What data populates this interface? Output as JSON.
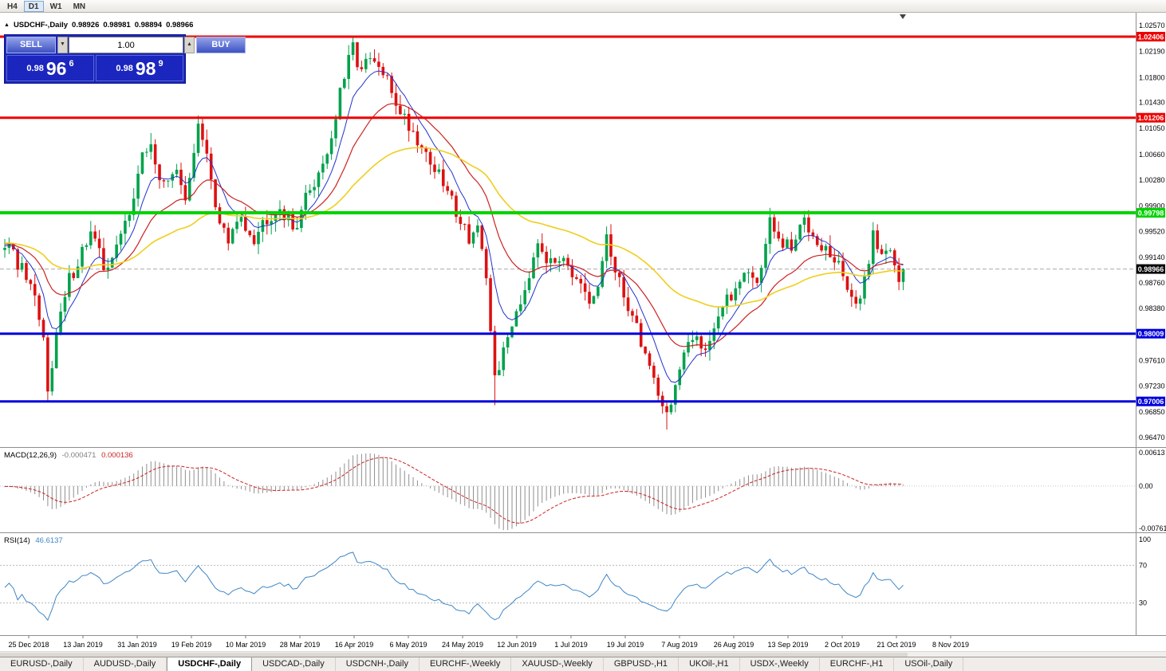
{
  "icons": {
    "title_marker": "▲",
    "volume_down": "▼",
    "volume_up": "▲"
  },
  "toolbar": {
    "timeframes": [
      {
        "label": "H4",
        "active": false
      },
      {
        "label": "D1",
        "active": true
      },
      {
        "label": "W1",
        "active": false
      },
      {
        "label": "MN",
        "active": false
      }
    ]
  },
  "chart": {
    "title": "USDCHF-,Daily",
    "ohlc": {
      "open": "0.98926",
      "high": "0.98981",
      "low": "0.98894",
      "close": "0.98966"
    },
    "trade_panel": {
      "sell_label": "SELL",
      "buy_label": "BUY",
      "volume": "1.00",
      "bid": {
        "prefix": "0.98",
        "big": "96",
        "sup": "6"
      },
      "ask": {
        "prefix": "0.98",
        "big": "98",
        "sup": "9"
      }
    }
  },
  "chart_data": {
    "type": "candlestick",
    "symbol": "USDCHF",
    "timeframe": "Daily",
    "title": "USDCHF-,Daily",
    "last_close": 0.98966,
    "candle_count": 210,
    "colors": {
      "up": "#00A24C",
      "down": "#DD1111",
      "ma_fast": "#2233CC",
      "ma_mid": "#CC2222",
      "ma_slow": "#EFCE1E"
    },
    "moving_averages": [
      {
        "period": 8,
        "color_key": "ma_fast",
        "width": 1
      },
      {
        "period": 21,
        "color_key": "ma_mid",
        "width": 1.2
      },
      {
        "period": 55,
        "color_key": "ma_slow",
        "width": 1.6
      }
    ],
    "axis": {
      "price_top": 1.0276,
      "price_bottom": 0.9633,
      "price_ticks": [
        1.0257,
        1.0219,
        1.018,
        1.0143,
        1.0105,
        1.0066,
        1.0028,
        0.999,
        0.9952,
        0.9914,
        0.9876,
        0.9838,
        0.9761,
        0.9723,
        0.9685,
        0.9647
      ],
      "date_labels": [
        "25 Dec 2018",
        "13 Jan 2019",
        "31 Jan 2019",
        "19 Feb 2019",
        "10 Mar 2019",
        "28 Mar 2019",
        "16 Apr 2019",
        "6 May 2019",
        "24 May 2019",
        "12 Jun 2019",
        "1 Jul 2019",
        "19 Jul 2019",
        "7 Aug 2019",
        "26 Aug 2019",
        "13 Sep 2019",
        "2 Oct 2019",
        "21 Oct 2019",
        "8 Nov 2019"
      ]
    },
    "levels": [
      {
        "value": 1.02406,
        "label": "1.02406",
        "color": "#EE0000",
        "thickness": 3
      },
      {
        "value": 1.01206,
        "label": "1.01206",
        "color": "#EE0000",
        "thickness": 3
      },
      {
        "value": 0.99798,
        "label": "0.99798",
        "color": "#00D300",
        "thickness": 4
      },
      {
        "value": 0.98009,
        "label": "0.98009",
        "color": "#0000DD",
        "thickness": 3
      },
      {
        "value": 0.97006,
        "label": "0.97006",
        "color": "#0000DD",
        "thickness": 3
      }
    ],
    "current_price": {
      "value": 0.98966,
      "label": "0.98966"
    },
    "price_anchors": [
      [
        0,
        0.9935
      ],
      [
        4,
        0.9895
      ],
      [
        7,
        0.9845
      ],
      [
        9,
        0.979
      ],
      [
        10,
        0.9725
      ],
      [
        12,
        0.98
      ],
      [
        15,
        0.988
      ],
      [
        18,
        0.9925
      ],
      [
        20,
        0.995
      ],
      [
        23,
        0.99
      ],
      [
        26,
        0.9925
      ],
      [
        29,
        0.9985
      ],
      [
        32,
        1.006
      ],
      [
        34,
        1.0085
      ],
      [
        36,
        1.002
      ],
      [
        39,
        1.0045
      ],
      [
        42,
        1.0005
      ],
      [
        45,
        1.0105
      ],
      [
        47,
        1.006
      ],
      [
        49,
        0.999
      ],
      [
        52,
        0.9935
      ],
      [
        55,
        0.9975
      ],
      [
        58,
        0.9945
      ],
      [
        61,
        0.9975
      ],
      [
        64,
        0.999
      ],
      [
        67,
        0.9955
      ],
      [
        70,
        1.0
      ],
      [
        73,
        1.004
      ],
      [
        76,
        1.009
      ],
      [
        78,
        1.0155
      ],
      [
        81,
        1.0225
      ],
      [
        83,
        1.019
      ],
      [
        85,
        1.0205
      ],
      [
        88,
        1.0185
      ],
      [
        91,
        1.0145
      ],
      [
        94,
        1.011
      ],
      [
        97,
        1.008
      ],
      [
        100,
        1.0045
      ],
      [
        103,
        1.001
      ],
      [
        105,
        0.9985
      ],
      [
        108,
        0.9945
      ],
      [
        110,
        0.996
      ],
      [
        112,
        0.987
      ],
      [
        114,
        0.974
      ],
      [
        116,
        0.977
      ],
      [
        118,
        0.982
      ],
      [
        121,
        0.987
      ],
      [
        124,
        0.9945
      ],
      [
        127,
        0.99
      ],
      [
        130,
        0.9925
      ],
      [
        133,
        0.9875
      ],
      [
        136,
        0.984
      ],
      [
        138,
        0.9865
      ],
      [
        140,
        0.995
      ],
      [
        142,
        0.9885
      ],
      [
        145,
        0.9845
      ],
      [
        148,
        0.979
      ],
      [
        151,
        0.9735
      ],
      [
        154,
        0.968
      ],
      [
        156,
        0.9725
      ],
      [
        158,
        0.9765
      ],
      [
        161,
        0.98
      ],
      [
        163,
        0.978
      ],
      [
        166,
        0.983
      ],
      [
        169,
        0.9855
      ],
      [
        172,
        0.99
      ],
      [
        175,
        0.9875
      ],
      [
        178,
        0.9965
      ],
      [
        180,
        0.9935
      ],
      [
        183,
        0.9925
      ],
      [
        186,
        0.997
      ],
      [
        189,
        0.9945
      ],
      [
        192,
        0.9915
      ],
      [
        195,
        0.989
      ],
      [
        197,
        0.9855
      ],
      [
        199,
        0.984
      ],
      [
        202,
        0.995
      ],
      [
        204,
        0.9915
      ],
      [
        206,
        0.9935
      ],
      [
        208,
        0.9885
      ],
      [
        209,
        0.98966
      ]
    ],
    "wick_extremes": [
      {
        "i": 10,
        "low": 0.9716
      },
      {
        "i": 34,
        "high": 1.0098
      },
      {
        "i": 45,
        "high": 1.0124
      },
      {
        "i": 81,
        "high": 1.0242
      },
      {
        "i": 114,
        "low": 0.9695
      },
      {
        "i": 154,
        "low": 0.9659
      },
      {
        "i": 202,
        "high": 0.9966
      }
    ],
    "indicators": {
      "macd": {
        "label": "MACD(12,26,9)",
        "value_main": "-0.000471",
        "value_signal": "0.000136",
        "fast": 12,
        "slow": 26,
        "signal": 9,
        "axis_max": "0.00613",
        "axis_zero": "0.00",
        "axis_min": "-0.007612",
        "range_min": -0.007612,
        "range_max": 0.00613
      },
      "rsi": {
        "label": "RSI(14)",
        "value": "46.6137",
        "period": 14,
        "levels": [
          70,
          30
        ],
        "axis_ticks": [
          100,
          70,
          30
        ]
      }
    }
  },
  "tabs": [
    {
      "label": "EURUSD-,Daily",
      "active": false
    },
    {
      "label": "AUDUSD-,Daily",
      "active": false
    },
    {
      "label": "USDCHF-,Daily",
      "active": true
    },
    {
      "label": "USDCAD-,Daily",
      "active": false
    },
    {
      "label": "USDCNH-,Daily",
      "active": false
    },
    {
      "label": "EURCHF-,Weekly",
      "active": false
    },
    {
      "label": "XAUUSD-,Weekly",
      "active": false
    },
    {
      "label": "GBPUSD-,H1",
      "active": false
    },
    {
      "label": "UKOil-,H1",
      "active": false
    },
    {
      "label": "USDX-,Weekly",
      "active": false
    },
    {
      "label": "EURCHF-,H1",
      "active": false
    },
    {
      "label": "USOil-,Daily",
      "active": false
    }
  ]
}
